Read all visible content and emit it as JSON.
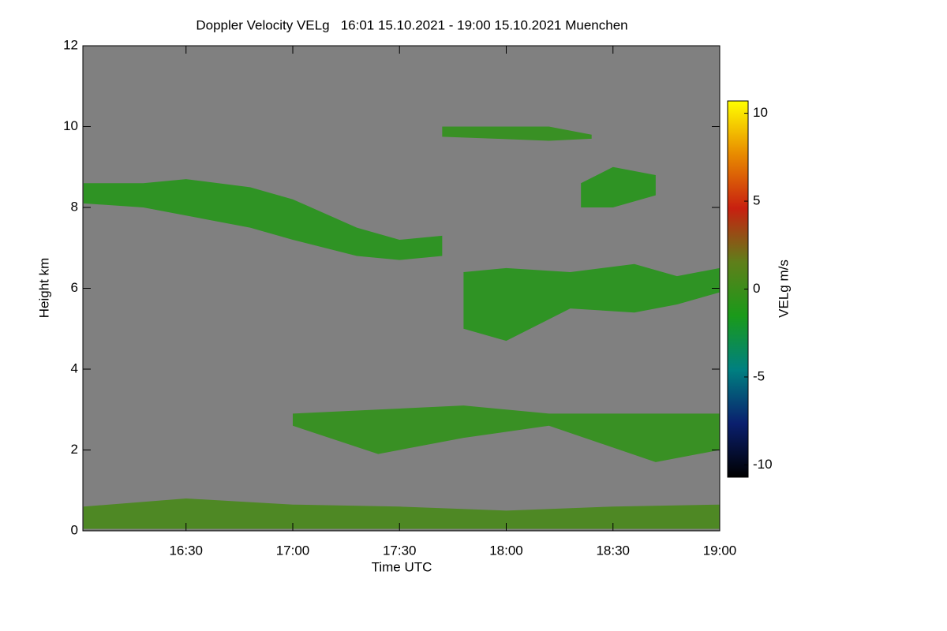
{
  "chart_data": {
    "type": "time-height",
    "title": "Doppler Velocity VELg   16:01 15.10.2021 - 19:00 15.10.2021 Muenchen",
    "x_label": "Time UTC",
    "y_label": "Height km",
    "colorbar_label": "VELg m/s",
    "background": "#808080",
    "xlim": [
      16.0167,
      19.0
    ],
    "xticks": [
      {
        "value": 16.5,
        "label": "16:30"
      },
      {
        "value": 17.0,
        "label": "17:00"
      },
      {
        "value": 17.5,
        "label": "17:30"
      },
      {
        "value": 18.0,
        "label": "18:00"
      },
      {
        "value": 18.5,
        "label": "18:30"
      },
      {
        "value": 19.0,
        "label": "19:00"
      }
    ],
    "ylim": [
      0,
      12
    ],
    "yticks": [
      0,
      2,
      4,
      6,
      8,
      10,
      12
    ],
    "clim": [
      -10.7,
      10.7
    ],
    "cticks": [
      10,
      5,
      0,
      -5,
      -10
    ],
    "colorscale": [
      "#000000",
      "#0a1f6e",
      "#008080",
      "#1a9a1a",
      "#5f7f1a",
      "#c82010",
      "#e88a00",
      "#ffff00"
    ],
    "layers": [
      {
        "x": [
          16.02,
          16.3,
          16.5,
          16.8,
          17.0,
          17.3,
          17.5,
          17.7
        ],
        "top": [
          8.6,
          8.6,
          8.7,
          8.5,
          8.2,
          7.5,
          7.2,
          7.3
        ],
        "base": [
          8.1,
          8.0,
          7.8,
          7.5,
          7.2,
          6.8,
          6.7,
          6.8
        ],
        "velocity": -1
      },
      {
        "x": [
          17.8,
          18.0,
          18.3,
          18.6,
          18.8,
          19.0
        ],
        "top": [
          6.4,
          6.5,
          6.4,
          6.6,
          6.3,
          6.5
        ],
        "base": [
          5.0,
          4.7,
          5.5,
          5.4,
          5.6,
          5.9
        ],
        "velocity": -1
      },
      {
        "x": [
          17.7,
          17.95,
          18.2,
          18.4
        ],
        "top": [
          10.0,
          10.0,
          10.0,
          9.8
        ],
        "base": [
          9.75,
          9.7,
          9.65,
          9.7
        ],
        "velocity": -0.5
      },
      {
        "x": [
          18.35,
          18.5,
          18.7
        ],
        "top": [
          8.6,
          9.0,
          8.8
        ],
        "base": [
          8.0,
          8.0,
          8.3
        ],
        "velocity": -1
      },
      {
        "x": [
          17.0,
          17.4,
          17.8,
          18.2,
          18.7,
          19.0
        ],
        "top": [
          2.9,
          3.0,
          3.1,
          2.9,
          2.9,
          2.9
        ],
        "base": [
          2.6,
          1.9,
          2.3,
          2.6,
          1.7,
          2.0
        ],
        "velocity": -0.5
      },
      {
        "x": [
          16.02,
          16.5,
          17.0,
          17.5,
          18.0,
          18.5,
          19.0
        ],
        "top": [
          0.6,
          0.8,
          0.65,
          0.6,
          0.5,
          0.6,
          0.65
        ],
        "base": [
          0.05,
          0.05,
          0.05,
          0.05,
          0.05,
          0.05,
          0.05
        ],
        "velocity": 0.5
      }
    ]
  }
}
